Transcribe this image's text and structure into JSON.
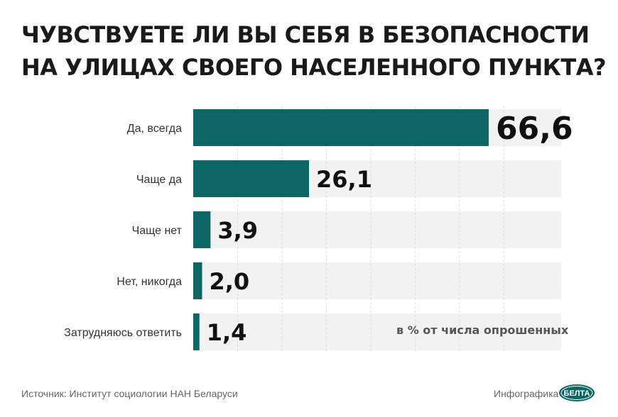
{
  "title_lines": [
    "ЧУВСТВУЕТЕ ЛИ ВЫ СЕБЯ В БЕЗОПАСНОСТИ",
    "НА УЛИЦАХ СВОЕГО НАСЕЛЕННОГО ПУНКТА?"
  ],
  "note": "в % от числа опрошенных",
  "source": "Источник: Институт социологии НАН Беларуси",
  "credit": "Инфографика",
  "logo_text": "БЕЛТА",
  "colors": {
    "bar": "#0e6664",
    "track": "#f2f2f2",
    "label": "#333333",
    "value": "#111111"
  },
  "chart_data": {
    "type": "bar",
    "orientation": "horizontal",
    "categories": [
      "Да, всегда",
      "Чаще да",
      "Чаще нет",
      "Нет, никогда",
      "Затрудняюсь ответить"
    ],
    "values": [
      66.6,
      26.1,
      3.9,
      2.0,
      1.4
    ],
    "value_labels": [
      "66,6",
      "26,1",
      "3,9",
      "2,0",
      "1,4"
    ],
    "xlim": [
      0,
      70
    ],
    "grid": true
  }
}
